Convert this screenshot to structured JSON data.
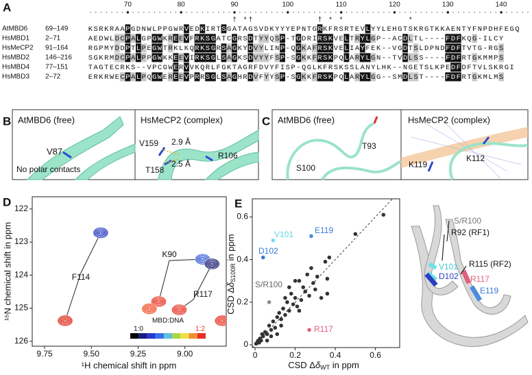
{
  "figure": {
    "panel_labels": [
      "A",
      "B",
      "C",
      "D",
      "E"
    ],
    "alignment": {
      "ruler": {
        "xlim": [
          62.5,
          145
        ],
        "ticks": [
          70,
          80,
          90,
          100,
          110,
          120,
          130,
          140
        ]
      },
      "markers": [
        {
          "symbol": "†",
          "position": 90
        },
        {
          "symbol": "*",
          "position": 92
        },
        {
          "symbol": "†",
          "position": 93
        },
        {
          "symbol": "†",
          "position": 106
        },
        {
          "symbol": "*",
          "position": 108
        },
        {
          "symbol": "*",
          "position": 110
        },
        {
          "symbol": "*",
          "position": 123
        }
      ],
      "rows": [
        {
          "name": "AtMBD6",
          "range": "69–149",
          "sequence": "KSRKRAAPGDNWLPPGWRVEDKIRTSGATAGSVDKYYYEPNTGRKFRSRTEVLYYLEHGTSKRGTKKAENTYFNPDHFEGQ"
        },
        {
          "name": "HsMBD1",
          "range": "2–71",
          "sequence": "AEDWLDCPALGPGWKREEVFRKSGATCGRSDTYYQSP-TGDRIRSKVELTRYLGP--ACDLTL----FDFKQG-ILCY"
        },
        {
          "name": "HsMeCP2",
          "range": "91–164",
          "sequence": "RGPMYDDPTLPEGWTRKLKQRKSGRSAGKYDVYLINP-QGKAFRSKVELIAYFEK--VGDTSLDPNDFDFTVTG-RGS"
        },
        {
          "name": "HsMBD2",
          "range": "146–216",
          "sequence": "SGKRMDCPALPPGWKKEEVIRKSGLSAGKSDVYYFSP-SGKKFRSKPQLARYLGN--TVDLSS----FDFRTGKMMPS"
        },
        {
          "name": "HsMBD4",
          "range": "77–151",
          "sequence": "TAGTECRKS--VPCGWERVVKQRLFGKTAGRFDVYFISP-QGLKFRSKSSLANYLHK--NGETSLKPEDFDFTVLSKRGI"
        },
        {
          "name": "HsMBD3",
          "range": "2–72",
          "sequence": "ERKRWECPALPQGWEREEVPRRSGLSAGHRDVFYYSP-SGKKFRSKPQLARYLGG--SMDLST----FDFRTGKMLMS"
        }
      ]
    },
    "panel_b": {
      "free": {
        "title": "AtMBD6 (free)",
        "labels": [
          "V87",
          "No polar contacts"
        ]
      },
      "complex": {
        "title": "HsMeCP2 (complex)",
        "labels": [
          "V159",
          "2.9 Å",
          "R106",
          "T158",
          "2.5 Å"
        ]
      }
    },
    "panel_c": {
      "free": {
        "title": "AtMBD6 (free)",
        "labels": [
          "T93",
          "S100"
        ]
      },
      "complex": {
        "title": "HsMeCP2 (complex)",
        "labels": [
          "K119",
          "K112"
        ]
      }
    },
    "structure_labels": [
      "S/R100",
      "R92 (RF1)",
      "V101",
      "D102",
      "R115 (RF2)",
      "R117",
      "E119"
    ]
  },
  "chart_data": [
    {
      "type": "contour",
      "xlim": [
        9.816,
        8.779
      ],
      "ylim": [
        126.15,
        121.63
      ],
      "xticks": [
        9.75,
        {
          "value": 9.5,
          "label": "9.50"
        },
        9.25,
        {
          "value": 9,
          "label": "9.00"
        }
      ],
      "yticks": [
        122,
        123,
        124,
        125,
        126
      ],
      "x_label": "¹H chemical shift in ppm",
      "y_label": "¹⁵N chemical shift in ppm",
      "annotations": [
        "F114",
        "K90",
        "R117"
      ],
      "peaks": [
        {
          "x": 9.64,
          "y": 125.38,
          "color": "#e02818"
        },
        {
          "x": 9.45,
          "y": 122.72,
          "color": "#2838c0"
        },
        {
          "x": 9.14,
          "y": 124.8,
          "color": "#e83020"
        },
        {
          "x": 9.03,
          "y": 125.05,
          "color": "#e83020"
        },
        {
          "x": 9.19,
          "y": 125.02,
          "color": "#f05028"
        },
        {
          "x": 8.905,
          "y": 123.52,
          "color": "#3a5ed8"
        },
        {
          "x": 8.855,
          "y": 123.66,
          "color": "#1a1a70"
        },
        {
          "x": 8.8,
          "y": 125.38,
          "color": "#e83020"
        }
      ],
      "colorbar": {
        "title": "MBD:DNA",
        "low": "1:0",
        "high": "1:2",
        "colors": [
          "#000000",
          "#1a1a80",
          "#2838d0",
          "#3a6ee8",
          "#5cc0e0",
          "#a8d848",
          "#f0e040",
          "#f09030",
          "#e83020"
        ]
      }
    },
    {
      "type": "scatter",
      "xlim": [
        -0.014,
        0.721
      ],
      "ylim": [
        -0.013,
        0.685
      ],
      "xticks": [
        0,
        0.2,
        0.4,
        0.6
      ],
      "yticks": [
        0,
        0.2,
        0.4,
        0.6
      ],
      "x_label": [
        "CSD Δ",
        "δ",
        "WT",
        " in ppm"
      ],
      "y_label": [
        "CSD Δ",
        "δ",
        "S100R",
        " in ppm"
      ],
      "series": [
        {
          "color": "#333333",
          "x": [
            0.005,
            0.01,
            0.015,
            0.02,
            0.025,
            0.03,
            0.035,
            0.04,
            0.05,
            0.06,
            0.07,
            0.08,
            0.09,
            0.1,
            0.11,
            0.12,
            0.13,
            0.14,
            0.15,
            0.16,
            0.17,
            0.18,
            0.19,
            0.2,
            0.21,
            0.22,
            0.23,
            0.24,
            0.25,
            0.26,
            0.27,
            0.28,
            0.29,
            0.3,
            0.31,
            0.33,
            0.35,
            0.36,
            0.36,
            0.37,
            0.5,
            0.64,
            0.13,
            0.06,
            0.08,
            0.22,
            0.17,
            0.2,
            0.11,
            0.15
          ],
          "y": [
            0.005,
            0.01,
            0.02,
            0.01,
            0.03,
            0.02,
            0.05,
            0.04,
            0.06,
            0.05,
            0.09,
            0.07,
            0.11,
            0.08,
            0.13,
            0.15,
            0.12,
            0.17,
            0.14,
            0.2,
            0.16,
            0.24,
            0.19,
            0.22,
            0.18,
            0.3,
            0.21,
            0.27,
            0.25,
            0.33,
            0.23,
            0.36,
            0.29,
            0.26,
            0.32,
            0.22,
            0.39,
            0.31,
            0.24,
            0.41,
            0.52,
            0.61,
            0.09,
            0.02,
            0.04,
            0.16,
            0.27,
            0.3,
            0.05,
            0.22
          ]
        },
        {
          "name": "S/R100",
          "color": "#8a8a8a",
          "x": [
            0.07
          ],
          "y": [
            0.2
          ]
        },
        {
          "name": "V101",
          "color": "#6fe0e8",
          "x": [
            0.09
          ],
          "y": [
            0.49
          ]
        },
        {
          "name": "D102",
          "color": "#3a7bd5",
          "x": [
            0.04
          ],
          "y": [
            0.41
          ]
        },
        {
          "name": "E119",
          "color": "#4a8be0",
          "x": [
            0.28
          ],
          "y": [
            0.51
          ]
        },
        {
          "name": "R117",
          "color": "#e0607e",
          "x": [
            0.27
          ],
          "y": [
            0.07
          ]
        }
      ],
      "diagonal": true
    }
  ]
}
